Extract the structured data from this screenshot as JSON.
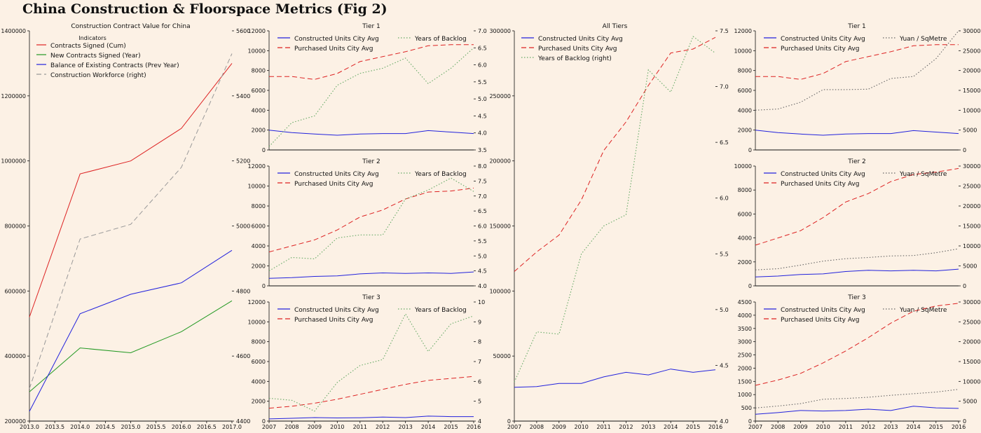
{
  "page": {
    "title": "China Construction & Floorspace Metrics (Fig 2)"
  },
  "colors": {
    "background": "#fcf1e5",
    "red": "#dd2222",
    "green": "#229922",
    "blue": "#2222dd",
    "gray": "#999999",
    "dotgreen": "#66aa66"
  },
  "chart_data": [
    {
      "id": "contracts",
      "type": "line",
      "title": "Construction Contract Value for China",
      "legend_title": "Indicators",
      "legend_position": "top-left",
      "x": [
        2013,
        2014,
        2015,
        2016,
        2017
      ],
      "xlim": [
        2013,
        2017
      ],
      "xticks": [
        "2013.0",
        "2013.5",
        "2014.0",
        "2014.5",
        "2015.0",
        "2015.5",
        "2016.0",
        "2016.5",
        "2017.0"
      ],
      "ylim": [
        200000,
        1400000
      ],
      "yticks": [
        "200000",
        "400000",
        "600000",
        "800000",
        "1000000",
        "1200000",
        "1400000"
      ],
      "y2lim": [
        4400,
        5600
      ],
      "y2ticks": [
        "4400",
        "4600",
        "4800",
        "5000",
        "5200",
        "5400",
        "5600"
      ],
      "series": [
        {
          "name": "Contracts Signed (Cum)",
          "axis": "left",
          "style": "red",
          "values": [
            520000,
            960000,
            1000000,
            1100000,
            1300000
          ]
        },
        {
          "name": "New Contracts Signed (Year)",
          "axis": "left",
          "style": "green",
          "values": [
            290000,
            425000,
            410000,
            475000,
            570000
          ]
        },
        {
          "name": "Balance of Existing Contracts (Prev Year)",
          "axis": "left",
          "style": "blue",
          "values": [
            230000,
            530000,
            590000,
            625000,
            725000
          ]
        },
        {
          "name": "Construction Workforce (right)",
          "axis": "right",
          "style": "graydash",
          "values": [
            4500,
            4960,
            5005,
            5180,
            5530
          ]
        }
      ]
    },
    {
      "id": "t1-backlog",
      "type": "line",
      "title": "Tier 1",
      "x": [
        2007,
        2008,
        2009,
        2010,
        2011,
        2012,
        2013,
        2014,
        2015,
        2016
      ],
      "xlim": [
        2007,
        2016
      ],
      "show_x_ticks": false,
      "ylim": [
        0,
        12000
      ],
      "yticks": [
        "0",
        "2000",
        "4000",
        "6000",
        "8000",
        "10000",
        "12000"
      ],
      "y2lim": [
        3.5,
        7.0
      ],
      "y2ticks": [
        "3.5",
        "4.0",
        "4.5",
        "5.0",
        "5.5",
        "6.0",
        "6.5",
        "7.0"
      ],
      "right_legend": "Years of Backlog",
      "series": [
        {
          "name": "Constructed Units City Avg",
          "axis": "left",
          "style": "blue",
          "values": [
            2000,
            1750,
            1600,
            1480,
            1600,
            1650,
            1650,
            1950,
            1800,
            1650
          ]
        },
        {
          "name": "Purchased Units City Avg",
          "axis": "left",
          "style": "reddash",
          "values": [
            7400,
            7400,
            7100,
            7700,
            8900,
            9400,
            9900,
            10500,
            10600,
            10600
          ]
        },
        {
          "name": "Years of Backlog",
          "axis": "right",
          "style": "dotgreen",
          "values": [
            3.6,
            4.3,
            4.5,
            5.4,
            5.75,
            5.9,
            6.2,
            5.45,
            5.9,
            6.5
          ]
        }
      ]
    },
    {
      "id": "t2-backlog",
      "type": "line",
      "title": "Tier 2",
      "x": [
        2007,
        2008,
        2009,
        2010,
        2011,
        2012,
        2013,
        2014,
        2015,
        2016
      ],
      "xlim": [
        2007,
        2016
      ],
      "show_x_ticks": false,
      "ylim": [
        0,
        12000
      ],
      "yticks": [
        "0",
        "2000",
        "4000",
        "6000",
        "8000",
        "10000",
        "12000"
      ],
      "y2lim": [
        4.0,
        8.0
      ],
      "y2ticks": [
        "4.0",
        "4.5",
        "5.0",
        "5.5",
        "6.0",
        "6.5",
        "7.0",
        "7.5",
        "8.0"
      ],
      "right_legend": "Years of Backlog",
      "series": [
        {
          "name": "Constructed Units City Avg",
          "axis": "left",
          "style": "blue",
          "values": [
            750,
            820,
            950,
            1000,
            1200,
            1300,
            1250,
            1300,
            1250,
            1400
          ]
        },
        {
          "name": "Purchased Units City Avg",
          "axis": "left",
          "style": "reddash",
          "values": [
            3400,
            4000,
            4600,
            5600,
            6900,
            7600,
            8700,
            9400,
            9500,
            9800
          ]
        },
        {
          "name": "Years of Backlog",
          "axis": "right",
          "style": "dotgreen",
          "values": [
            4.5,
            4.95,
            4.9,
            5.6,
            5.7,
            5.7,
            6.9,
            7.2,
            7.6,
            7.15
          ]
        }
      ]
    },
    {
      "id": "t3-backlog",
      "type": "line",
      "title": "Tier 3",
      "x": [
        2007,
        2008,
        2009,
        2010,
        2011,
        2012,
        2013,
        2014,
        2015,
        2016
      ],
      "xlim": [
        2007,
        2016
      ],
      "show_x_ticks": true,
      "xticks": [
        "2007",
        "2008",
        "2009",
        "2010",
        "2011",
        "2012",
        "2013",
        "2014",
        "2015",
        "2016"
      ],
      "ylim": [
        0,
        12000
      ],
      "yticks": [
        "0",
        "2000",
        "4000",
        "6000",
        "8000",
        "10000",
        "12000"
      ],
      "y2lim": [
        4,
        10
      ],
      "y2ticks": [
        "4",
        "5",
        "6",
        "7",
        "8",
        "9",
        "10"
      ],
      "right_legend": "Years of Backlog",
      "series": [
        {
          "name": "Constructed Units City Avg",
          "axis": "left",
          "style": "blue",
          "values": [
            220,
            280,
            350,
            320,
            340,
            400,
            350,
            500,
            450,
            450
          ]
        },
        {
          "name": "Purchased Units City Avg",
          "axis": "left",
          "style": "reddash",
          "values": [
            1300,
            1500,
            1800,
            2200,
            2700,
            3200,
            3700,
            4100,
            4300,
            4500
          ]
        },
        {
          "name": "Years of Backlog",
          "axis": "right",
          "style": "dotgreen",
          "values": [
            5.15,
            5.05,
            4.5,
            5.95,
            6.8,
            7.1,
            9.4,
            7.5,
            8.9,
            9.3
          ]
        }
      ]
    },
    {
      "id": "all-tiers",
      "type": "line",
      "title": "All Tiers",
      "x": [
        2007,
        2008,
        2009,
        2010,
        2011,
        2012,
        2013,
        2014,
        2015,
        2016
      ],
      "xlim": [
        2007,
        2016
      ],
      "show_x_ticks": true,
      "xticks": [
        "2007",
        "2008",
        "2009",
        "2010",
        "2011",
        "2012",
        "2013",
        "2014",
        "2015",
        "2016"
      ],
      "ylim": [
        0,
        300000
      ],
      "yticks": [
        "0",
        "50000",
        "100000",
        "150000",
        "200000",
        "250000",
        "300000"
      ],
      "y2lim": [
        4.0,
        7.5
      ],
      "y2ticks": [
        "4.0",
        "4.5",
        "5.0",
        "5.5",
        "6.0",
        "6.5",
        "7.0",
        "7.5"
      ],
      "series": [
        {
          "name": "Constructed Units City Avg",
          "axis": "left",
          "style": "blue",
          "values": [
            26000,
            26500,
            29000,
            29000,
            34000,
            37500,
            35500,
            40000,
            37500,
            39500
          ]
        },
        {
          "name": "Purchased Units City Avg",
          "axis": "left",
          "style": "reddash",
          "values": [
            115000,
            130000,
            143000,
            170000,
            208000,
            230000,
            258000,
            283000,
            286000,
            295000
          ]
        },
        {
          "name": "Years of Backlog (right)",
          "axis": "right",
          "style": "dotgreen",
          "values": [
            4.35,
            4.8,
            4.78,
            5.5,
            5.75,
            5.85,
            7.15,
            6.95,
            7.45,
            7.3
          ]
        }
      ]
    },
    {
      "id": "t1-price",
      "type": "line",
      "title": "Tier 1",
      "x": [
        2007,
        2008,
        2009,
        2010,
        2011,
        2012,
        2013,
        2014,
        2015,
        2016
      ],
      "xlim": [
        2007,
        2016
      ],
      "show_x_ticks": false,
      "ylim": [
        0,
        12000
      ],
      "yticks": [
        "0",
        "2000",
        "4000",
        "6000",
        "8000",
        "10000",
        "12000"
      ],
      "y2lim": [
        0,
        30000
      ],
      "y2ticks": [
        "0",
        "5000",
        "10000",
        "15000",
        "20000",
        "25000",
        "30000"
      ],
      "right_legend": "Yuan / SqMetre",
      "series": [
        {
          "name": "Constructed Units City Avg",
          "axis": "left",
          "style": "blue",
          "values": [
            2000,
            1750,
            1600,
            1480,
            1600,
            1650,
            1650,
            1950,
            1800,
            1650
          ]
        },
        {
          "name": "Purchased Units City Avg",
          "axis": "left",
          "style": "reddash",
          "values": [
            7400,
            7400,
            7100,
            7700,
            8900,
            9400,
            9900,
            10500,
            10600,
            10600
          ]
        },
        {
          "name": "Yuan / SqMetre",
          "axis": "right",
          "style": "dotgray",
          "values": [
            10000,
            10300,
            12000,
            15200,
            15200,
            15300,
            18000,
            18500,
            23000,
            30000
          ]
        }
      ]
    },
    {
      "id": "t2-price",
      "type": "line",
      "title": "Tier 2",
      "x": [
        2007,
        2008,
        2009,
        2010,
        2011,
        2012,
        2013,
        2014,
        2015,
        2016
      ],
      "xlim": [
        2007,
        2016
      ],
      "show_x_ticks": false,
      "ylim": [
        0,
        10000
      ],
      "yticks": [
        "0",
        "2000",
        "4000",
        "6000",
        "8000",
        "10000"
      ],
      "y2lim": [
        0,
        30000
      ],
      "y2ticks": [
        "0",
        "5000",
        "10000",
        "15000",
        "20000",
        "25000",
        "30000"
      ],
      "right_legend": "Yuan / SqMetre",
      "series": [
        {
          "name": "Constructed Units City Avg",
          "axis": "left",
          "style": "blue",
          "values": [
            750,
            820,
            950,
            1000,
            1200,
            1300,
            1250,
            1300,
            1250,
            1400
          ]
        },
        {
          "name": "Purchased Units City Avg",
          "axis": "left",
          "style": "reddash",
          "values": [
            3400,
            4000,
            4600,
            5700,
            7000,
            7700,
            8700,
            9300,
            9500,
            9800
          ]
        },
        {
          "name": "Yuan / SqMetre",
          "axis": "right",
          "style": "dotgray",
          "values": [
            4000,
            4300,
            5200,
            6200,
            6800,
            7100,
            7500,
            7600,
            8300,
            9300
          ]
        }
      ]
    },
    {
      "id": "t3-price",
      "type": "line",
      "title": "Tier 3",
      "x": [
        2007,
        2008,
        2009,
        2010,
        2011,
        2012,
        2013,
        2014,
        2015,
        2016
      ],
      "xlim": [
        2007,
        2016
      ],
      "show_x_ticks": true,
      "xticks": [
        "2007",
        "2008",
        "2009",
        "2010",
        "2011",
        "2012",
        "2013",
        "2014",
        "2015",
        "2016"
      ],
      "ylim": [
        0,
        4500
      ],
      "yticks": [
        "0",
        "500",
        "1000",
        "1500",
        "2000",
        "2500",
        "3000",
        "3500",
        "4000",
        "4500"
      ],
      "y2lim": [
        0,
        30000
      ],
      "y2ticks": [
        "0",
        "5000",
        "10000",
        "15000",
        "20000",
        "25000",
        "30000"
      ],
      "right_legend": "Yuan / SqMetre",
      "series": [
        {
          "name": "Constructed Units City Avg",
          "axis": "left",
          "style": "blue",
          "values": [
            260,
            320,
            400,
            380,
            400,
            450,
            400,
            560,
            500,
            480
          ]
        },
        {
          "name": "Purchased Units City Avg",
          "axis": "left",
          "style": "reddash",
          "values": [
            1350,
            1550,
            1800,
            2200,
            2650,
            3150,
            3700,
            4150,
            4350,
            4450
          ]
        },
        {
          "name": "Yuan / SqMetre",
          "axis": "right",
          "style": "dotgray",
          "values": [
            3300,
            3800,
            4400,
            5500,
            5700,
            6000,
            6500,
            6900,
            7300,
            8000
          ]
        }
      ]
    }
  ]
}
